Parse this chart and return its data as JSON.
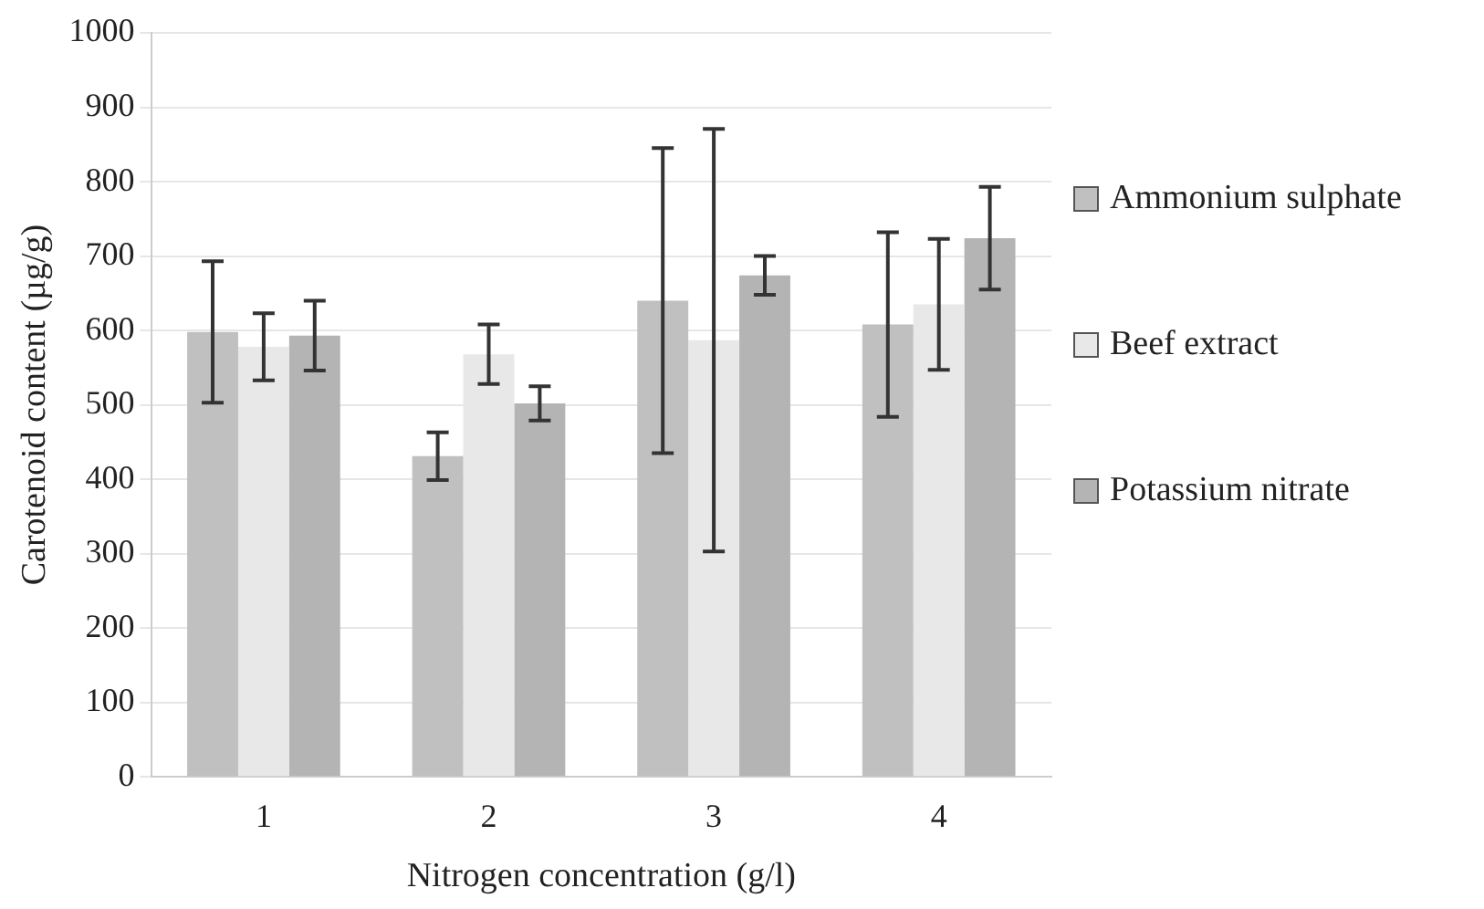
{
  "chart_data": {
    "type": "bar",
    "xlabel": "Nitrogen concentration (g/l)",
    "ylabel": "Carotenoid content (µg/g)",
    "categories": [
      "1",
      "2",
      "3",
      "4"
    ],
    "series": [
      {
        "name": "Ammonium sulphate",
        "color": "#c0c0c0",
        "values": [
          598,
          431,
          640,
          608
        ],
        "errors": [
          95,
          32,
          205,
          124
        ]
      },
      {
        "name": "Beef extract",
        "color": "#e8e8e8",
        "values": [
          578,
          568,
          587,
          635
        ],
        "errors": [
          45,
          40,
          284,
          88
        ]
      },
      {
        "name": "Potassium nitrate",
        "color": "#b4b4b4",
        "values": [
          593,
          502,
          674,
          724
        ],
        "errors": [
          47,
          23,
          26,
          69
        ]
      }
    ],
    "ylim": [
      0,
      1000
    ],
    "yticks": [
      0,
      100,
      200,
      300,
      400,
      500,
      600,
      700,
      800,
      900,
      1000
    ],
    "grid": "y",
    "legend": "right"
  }
}
